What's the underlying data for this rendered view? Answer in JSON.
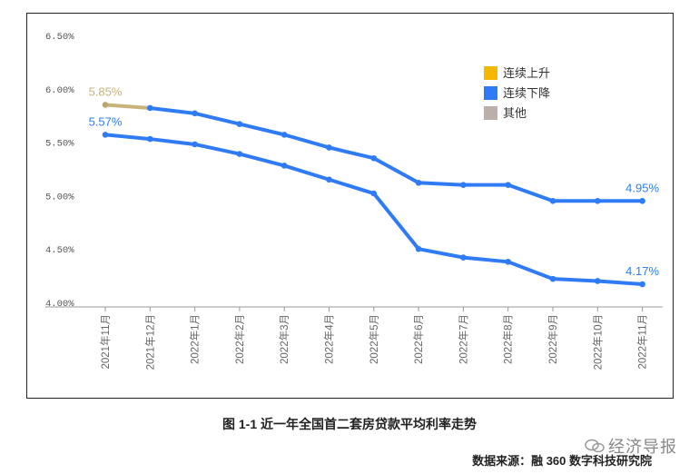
{
  "chart_data": {
    "type": "line",
    "categories": [
      "2021年11月",
      "2021年12月",
      "2022年1月",
      "2022年2月",
      "2022年3月",
      "2022年4月",
      "2022年5月",
      "2022年6月",
      "2022年7月",
      "2022年8月",
      "2022年9月",
      "2022年10月",
      "2022年11月"
    ],
    "y_ticks": [
      "6.50%",
      "6.00%",
      "5.50%",
      "5.00%",
      "4.50%",
      "4.00%"
    ],
    "ylim": [
      4.0,
      6.5
    ],
    "series": [
      {
        "values": [
          5.85,
          5.82,
          5.77,
          5.67,
          5.57,
          5.45,
          5.35,
          5.12,
          5.1,
          5.1,
          4.95,
          4.95,
          4.95
        ]
      },
      {
        "values": [
          5.57,
          5.53,
          5.48,
          5.39,
          5.28,
          5.15,
          5.02,
          4.5,
          4.42,
          4.38,
          4.22,
          4.2,
          4.17
        ]
      }
    ],
    "data_labels": [
      {
        "text": "5.85%",
        "color": "#c8b37a"
      },
      {
        "text": "5.57%",
        "color": "#2f80ed"
      },
      {
        "text": "4.95%",
        "color": "#2f80ed"
      },
      {
        "text": "4.17%",
        "color": "#2f80ed"
      }
    ],
    "legend": {
      "placement": "top-right",
      "items": [
        {
          "label": "连续上升",
          "color": "#f5b700"
        },
        {
          "label": "连续下降",
          "color": "#2f7bf6"
        },
        {
          "label": "其他",
          "color": "#bcaea8"
        }
      ]
    },
    "line_color": "#2f7bf6",
    "first_segment_color": "#c8b37a",
    "grid": false
  },
  "caption": "图 1-1  近一年全国首二套房贷款平均利率走势",
  "source": "数据来源：融 360 数字科技研究院",
  "watermark": "经济导报"
}
